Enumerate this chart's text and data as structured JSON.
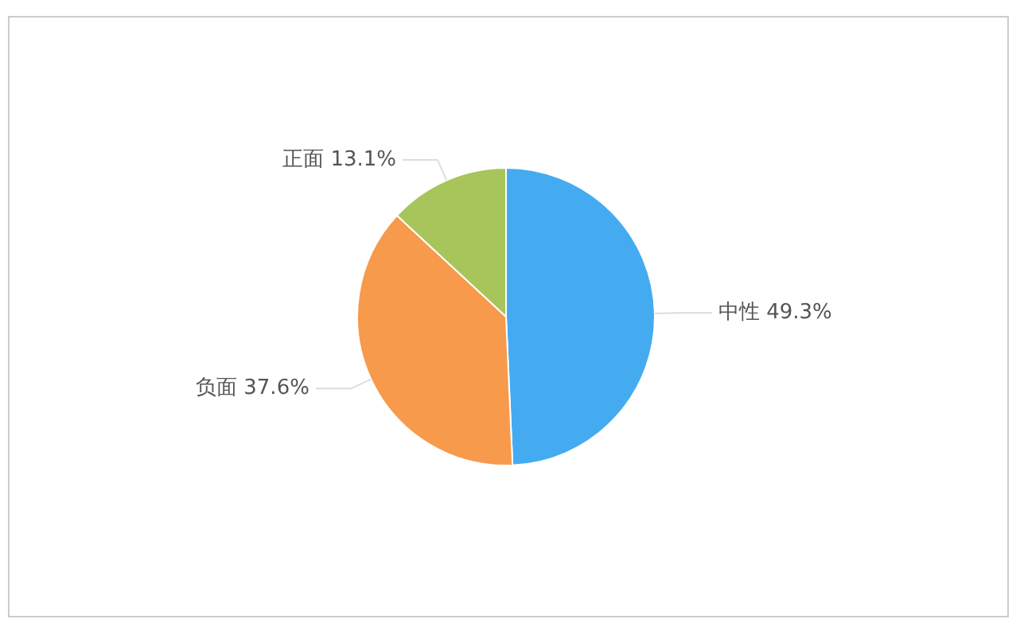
{
  "chart_data": {
    "type": "pie",
    "categories": [
      "中性",
      "负面",
      "正面"
    ],
    "values": [
      49.3,
      37.6,
      13.1
    ],
    "value_labels": [
      "49.3%",
      "37.6%",
      "13.1%"
    ],
    "colors": [
      "#45abf0",
      "#f79a4c",
      "#a7c55a"
    ],
    "legend": false
  }
}
